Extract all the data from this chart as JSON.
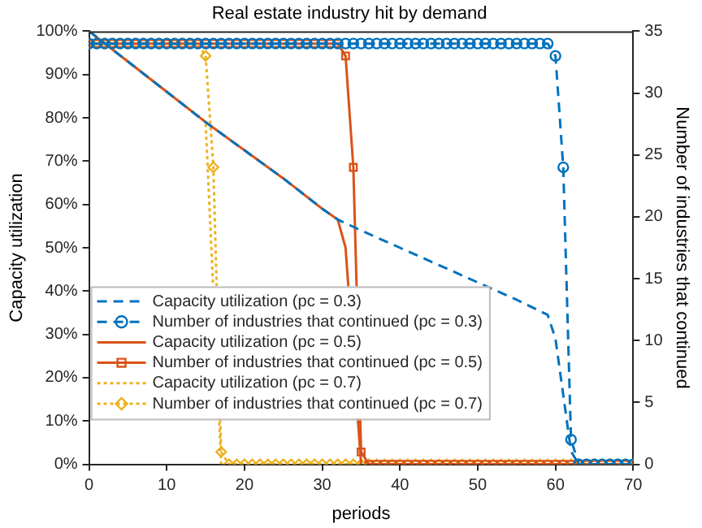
{
  "chart_data": {
    "type": "line",
    "title": "Real estate industry hit by demand",
    "xlabel": "periods",
    "ylabel": "Capacity utilization",
    "y2label": "Number of industries that continued",
    "x": [
      0,
      1,
      2,
      3,
      4,
      5,
      6,
      7,
      8,
      9,
      10,
      11,
      12,
      13,
      14,
      15,
      16,
      17,
      18,
      19,
      20,
      21,
      22,
      23,
      24,
      25,
      26,
      27,
      28,
      29,
      30,
      31,
      32,
      33,
      34,
      35,
      36,
      37,
      38,
      39,
      40,
      41,
      42,
      43,
      44,
      45,
      46,
      47,
      48,
      49,
      50,
      51,
      52,
      53,
      54,
      55,
      56,
      57,
      58,
      59,
      60,
      61,
      62,
      63,
      64,
      65,
      66,
      67,
      68,
      69,
      70
    ],
    "xlim": [
      0,
      70
    ],
    "xticks": [
      0,
      10,
      20,
      30,
      40,
      50,
      60,
      70
    ],
    "ylim": [
      0,
      100
    ],
    "yticks": [
      {
        "value": 0,
        "label": "0%"
      },
      {
        "value": 10,
        "label": "10%"
      },
      {
        "value": 20,
        "label": "20%"
      },
      {
        "value": 30,
        "label": "30%"
      },
      {
        "value": 40,
        "label": "40%"
      },
      {
        "value": 50,
        "label": "50%"
      },
      {
        "value": 60,
        "label": "60%"
      },
      {
        "value": 70,
        "label": "70%"
      },
      {
        "value": 80,
        "label": "80%"
      },
      {
        "value": 90,
        "label": "90%"
      },
      {
        "value": 100,
        "label": "100%"
      }
    ],
    "y2lim": [
      0,
      35
    ],
    "y2ticks": [
      0,
      5,
      10,
      15,
      20,
      25,
      30,
      35
    ],
    "grid": false,
    "legend": "bottom left",
    "series": [
      {
        "name": "Capacity utilization (pc = 0.3)",
        "color": "#0072bd",
        "line_style": "dashed",
        "marker": "none",
        "x": [
          0,
          5,
          10,
          15,
          20,
          25,
          30,
          32,
          35,
          40,
          45,
          50,
          55,
          59,
          60,
          61,
          62,
          63
        ],
        "values": [
          100,
          93,
          86,
          79,
          72.5,
          66,
          59,
          56.5,
          54,
          50,
          46,
          42,
          38,
          34.5,
          29,
          16,
          3,
          0
        ]
      },
      {
        "name": "Number of industries that continued (pc = 0.3)",
        "color": "#0072bd",
        "line_style": "dashed",
        "marker": "circle",
        "axis": "y2",
        "values": [
          34,
          34,
          34,
          34,
          34,
          34,
          34,
          34,
          34,
          34,
          34,
          34,
          34,
          34,
          34,
          34,
          34,
          34,
          34,
          34,
          34,
          34,
          34,
          34,
          34,
          34,
          34,
          34,
          34,
          34,
          34,
          34,
          34,
          34,
          34,
          34,
          34,
          34,
          34,
          34,
          34,
          34,
          34,
          34,
          34,
          34,
          34,
          34,
          34,
          34,
          34,
          34,
          34,
          34,
          34,
          34,
          34,
          34,
          34,
          34,
          33,
          24,
          2,
          0,
          0,
          0,
          0,
          0,
          0,
          0,
          0
        ]
      },
      {
        "name": "Capacity utilization (pc = 0.5)",
        "color": "#d95319",
        "line_style": "solid",
        "marker": "none",
        "x": [
          0,
          5,
          10,
          15,
          20,
          25,
          30,
          32,
          33,
          34,
          35
        ],
        "values": [
          100,
          93,
          86,
          79,
          72.5,
          66,
          59,
          56.5,
          50,
          null,
          0
        ]
      },
      {
        "name": "Number of industries that continued (pc = 0.5)",
        "color": "#d95319",
        "line_style": "solid",
        "marker": "square",
        "axis": "y2",
        "values": [
          34,
          34,
          34,
          34,
          34,
          34,
          34,
          34,
          34,
          34,
          34,
          34,
          34,
          34,
          34,
          34,
          34,
          34,
          34,
          34,
          34,
          34,
          34,
          34,
          34,
          34,
          34,
          34,
          34,
          34,
          34,
          34,
          34,
          33,
          24,
          1,
          0,
          0,
          0,
          0,
          0,
          0,
          0,
          0,
          0,
          0,
          0,
          0,
          0,
          0,
          0,
          0,
          0,
          0,
          0,
          0,
          0,
          0,
          0,
          0,
          0,
          0,
          0,
          0,
          0,
          0,
          0,
          0,
          0,
          0,
          0
        ]
      },
      {
        "name": "Capacity utilization (pc = 0.7)",
        "color": "#edb120",
        "line_style": "dotted",
        "marker": "none",
        "x": [
          0,
          5,
          10,
          14,
          15,
          16,
          17
        ],
        "values": [
          100,
          93,
          86,
          80.5,
          79,
          null,
          0
        ]
      },
      {
        "name": "Number of industries that continued (pc = 0.7)",
        "color": "#edb120",
        "line_style": "dotted",
        "marker": "diamond",
        "axis": "y2",
        "values": [
          34,
          34,
          34,
          34,
          34,
          34,
          34,
          34,
          34,
          34,
          34,
          34,
          34,
          34,
          34,
          33,
          24,
          1,
          0,
          0,
          0,
          0,
          0,
          0,
          0,
          0,
          0,
          0,
          0,
          0,
          0,
          0,
          0,
          0,
          0,
          0,
          0,
          0,
          0,
          0,
          0,
          0,
          0,
          0,
          0,
          0,
          0,
          0,
          0,
          0,
          0,
          0,
          0,
          0,
          0,
          0,
          0,
          0,
          0,
          0,
          0,
          0,
          0,
          0,
          0,
          0,
          0,
          0,
          0,
          0,
          0
        ]
      }
    ]
  }
}
